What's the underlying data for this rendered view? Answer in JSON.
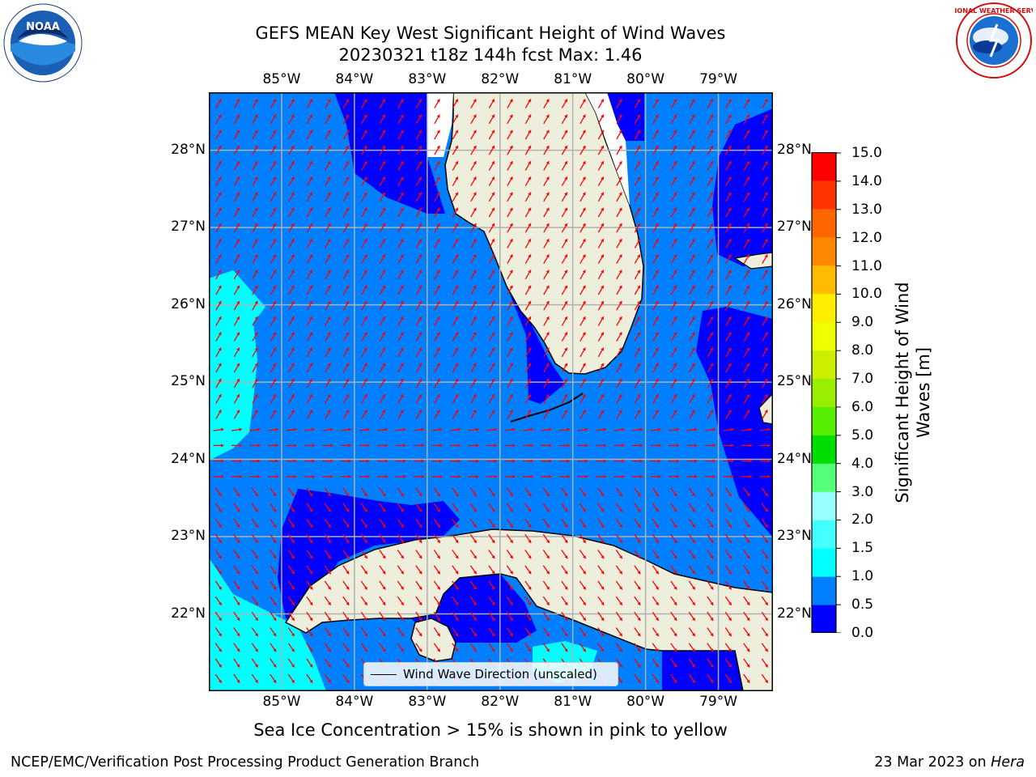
{
  "title_line1": "GEFS MEAN Key West Significant Height of Wind Waves",
  "title_line2": "20230321 t18z 144h fcst   Max: 1.46",
  "logos": {
    "left": "NOAA",
    "right": "National Weather Service"
  },
  "map": {
    "lon_range": [
      -86.0,
      -78.25
    ],
    "lat_range": [
      21.0,
      28.75
    ],
    "lon_ticks": [
      "85°W",
      "84°W",
      "83°W",
      "82°W",
      "81°W",
      "80°W",
      "79°W"
    ],
    "lat_ticks": [
      "28°N",
      "27°N",
      "26°N",
      "25°N",
      "24°N",
      "23°N",
      "22°N"
    ],
    "grid": true,
    "arrow_color": "#ff0000",
    "land_color": "#eeeedd",
    "ocean_color": "#0080ff"
  },
  "legend": {
    "label": "Wind Wave Direction (unscaled)",
    "placement": "lower-center"
  },
  "colorbar": {
    "label": "Significant Height of Wind Waves [m]",
    "ticks": [
      "0.0",
      "0.5",
      "1.0",
      "1.5",
      "2.0",
      "3.0",
      "4.0",
      "5.0",
      "6.0",
      "7.0",
      "8.0",
      "9.0",
      "10.0",
      "11.0",
      "12.0",
      "13.0",
      "14.0",
      "15.0"
    ],
    "colors": [
      "#0000ff",
      "#0080ff",
      "#00ffff",
      "#44ffff",
      "#99ffff",
      "#55ff77",
      "#00dd00",
      "#55ee00",
      "#99ee00",
      "#ccee00",
      "#eeff00",
      "#ffee00",
      "#ffbb00",
      "#ff8800",
      "#ff6600",
      "#ff3300",
      "#ff0000"
    ]
  },
  "ice_note": "Sea Ice Concentration > 15% is shown in pink to yellow",
  "footer_left": "NCEP/EMC/Verification Post Processing Product Generation Branch",
  "footer_date": "23 Mar 2023 on ",
  "footer_machine": "Hera"
}
